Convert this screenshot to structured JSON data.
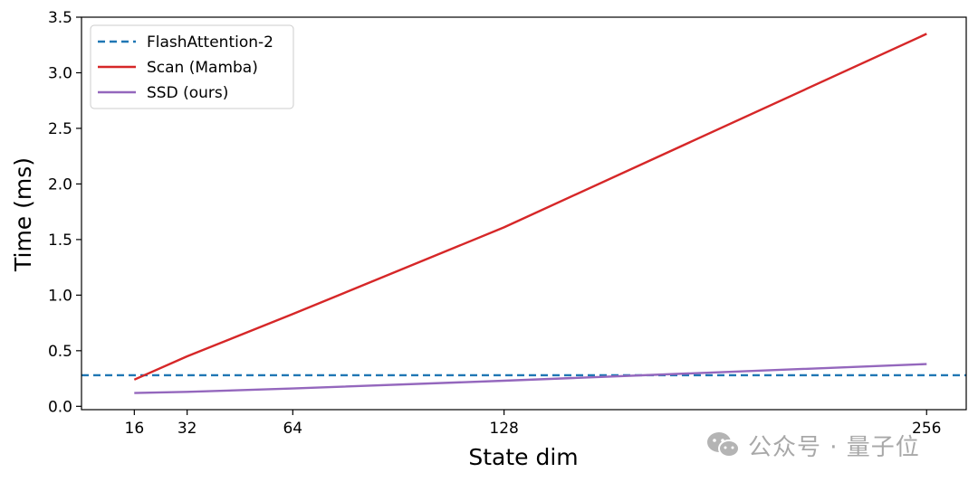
{
  "chart_data": {
    "type": "line",
    "title": "",
    "xlabel": "State dim",
    "ylabel": "Time (ms)",
    "xticks": [
      16,
      32,
      64,
      128,
      256
    ],
    "yticks": [
      0.0,
      0.5,
      1.0,
      1.5,
      2.0,
      2.5,
      3.0,
      3.5
    ],
    "ytick_labels": [
      "0.0",
      "0.5",
      "1.0",
      "1.5",
      "2.0",
      "2.5",
      "3.0",
      "3.5"
    ],
    "xlim": [
      0,
      268
    ],
    "ylim": [
      -0.03,
      3.5
    ],
    "grid": false,
    "legend_position": "top-left",
    "series": [
      {
        "name": "FlashAttention-2",
        "style": "dashed",
        "color": "#1f77b4",
        "x": [
          0,
          268
        ],
        "y": [
          0.28,
          0.28
        ]
      },
      {
        "name": "Scan (Mamba)",
        "style": "solid",
        "color": "#d62728",
        "x": [
          16,
          32,
          64,
          128,
          256
        ],
        "y": [
          0.24,
          0.45,
          0.83,
          1.61,
          3.35
        ]
      },
      {
        "name": "SSD (ours)",
        "style": "solid",
        "color": "#9467bd",
        "x": [
          16,
          32,
          64,
          128,
          256
        ],
        "y": [
          0.12,
          0.13,
          0.16,
          0.23,
          0.38
        ]
      }
    ]
  },
  "watermark": {
    "icon": "wechat-icon",
    "text": "公众号 · 量子位"
  }
}
